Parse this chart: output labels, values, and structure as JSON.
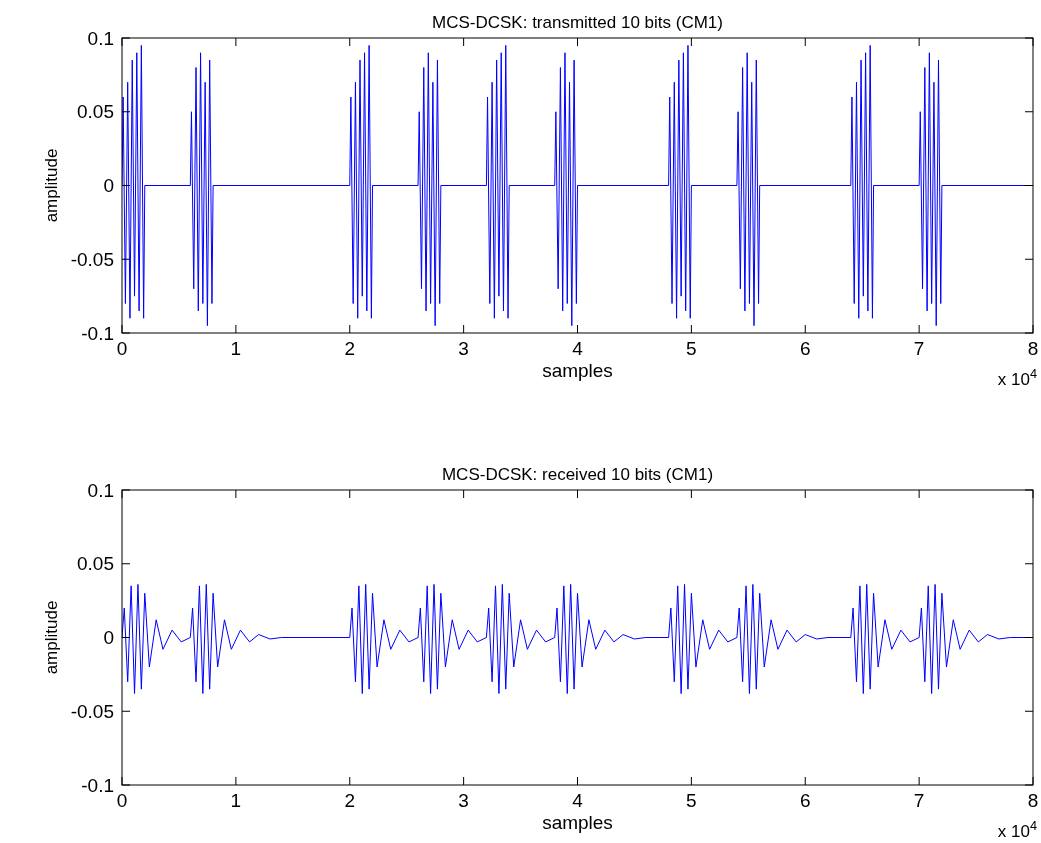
{
  "chart_data": [
    {
      "type": "line",
      "title": "MCS-DCSK: transmitted 10 bits (CM1)",
      "xlabel": "samples",
      "ylabel": "amplitude",
      "xlim": [
        0,
        8
      ],
      "ylim": [
        -0.1,
        0.1
      ],
      "xticks": [
        0,
        1,
        2,
        3,
        4,
        5,
        6,
        7,
        8
      ],
      "yticks": [
        -0.1,
        -0.05,
        0,
        0.05,
        0.1
      ],
      "grid": false,
      "annotations": [
        "x 10$^{4}$"
      ],
      "series": [
        {
          "color": "#0000ff",
          "line_style": "solid",
          "x": [
            0,
            0.01,
            0.03,
            0.05,
            0.07,
            0.09,
            0.11,
            0.13,
            0.15,
            0.17,
            0.19,
            0.2,
            0.6,
            0.61,
            0.63,
            0.65,
            0.67,
            0.69,
            0.71,
            0.73,
            0.75,
            0.77,
            0.79,
            0.8,
            2,
            2.01,
            2.03,
            2.05,
            2.07,
            2.09,
            2.11,
            2.13,
            2.15,
            2.17,
            2.19,
            2.2,
            2.6,
            2.61,
            2.63,
            2.65,
            2.67,
            2.69,
            2.71,
            2.73,
            2.75,
            2.77,
            2.79,
            2.8,
            3.2,
            3.21,
            3.23,
            3.25,
            3.27,
            3.29,
            3.31,
            3.33,
            3.35,
            3.37,
            3.39,
            3.4,
            3.8,
            3.81,
            3.83,
            3.85,
            3.87,
            3.89,
            3.91,
            3.93,
            3.95,
            3.97,
            3.99,
            4,
            4.8,
            4.81,
            4.83,
            4.85,
            4.87,
            4.89,
            4.91,
            4.93,
            4.95,
            4.97,
            4.99,
            5,
            5.4,
            5.41,
            5.43,
            5.45,
            5.47,
            5.49,
            5.51,
            5.53,
            5.55,
            5.57,
            5.59,
            5.6,
            6.4,
            6.41,
            6.43,
            6.45,
            6.47,
            6.49,
            6.51,
            6.53,
            6.55,
            6.57,
            6.59,
            6.6,
            7,
            7.01,
            7.03,
            7.05,
            7.07,
            7.09,
            7.11,
            7.13,
            7.15,
            7.17,
            7.19,
            7.2,
            8
          ],
          "values": [
            0,
            0.06,
            -0.08,
            0.07,
            -0.09,
            0.085,
            -0.075,
            0.09,
            -0.085,
            0.095,
            -0.09,
            0,
            0,
            0.05,
            -0.07,
            0.08,
            -0.085,
            0.09,
            -0.08,
            0.07,
            -0.095,
            0.085,
            -0.08,
            0,
            0,
            0.06,
            -0.08,
            0.07,
            -0.09,
            0.085,
            -0.075,
            0.09,
            -0.085,
            0.095,
            -0.09,
            0,
            0,
            0.05,
            -0.07,
            0.08,
            -0.085,
            0.09,
            -0.08,
            0.07,
            -0.095,
            0.085,
            -0.08,
            0,
            0,
            0.06,
            -0.08,
            0.07,
            -0.09,
            0.085,
            -0.075,
            0.09,
            -0.085,
            0.095,
            -0.09,
            0,
            0,
            0.05,
            -0.07,
            0.08,
            -0.085,
            0.09,
            -0.08,
            0.07,
            -0.095,
            0.085,
            -0.08,
            0,
            0,
            0.06,
            -0.08,
            0.07,
            -0.09,
            0.085,
            -0.075,
            0.09,
            -0.085,
            0.095,
            -0.09,
            0,
            0,
            0.05,
            -0.07,
            0.08,
            -0.085,
            0.09,
            -0.08,
            0.07,
            -0.095,
            0.085,
            -0.08,
            0,
            0,
            0.06,
            -0.08,
            0.07,
            -0.09,
            0.085,
            -0.075,
            0.09,
            -0.085,
            0.095,
            -0.09,
            0,
            0,
            0.05,
            -0.07,
            0.08,
            -0.085,
            0.09,
            -0.08,
            0.07,
            -0.095,
            0.085,
            -0.08,
            0,
            0
          ]
        }
      ]
    },
    {
      "type": "line",
      "title": "MCS-DCSK: received 10 bits (CM1)",
      "xlabel": "samples",
      "ylabel": "amplitude",
      "xlim": [
        0,
        8
      ],
      "ylim": [
        -0.1,
        0.1
      ],
      "xticks": [
        0,
        1,
        2,
        3,
        4,
        5,
        6,
        7,
        8
      ],
      "yticks": [
        -0.1,
        -0.05,
        0,
        0.05,
        0.1
      ],
      "grid": false,
      "annotations": [
        "x 10$^{4}$"
      ],
      "series": [
        {
          "color": "#0000ff",
          "line_style": "solid",
          "x": [
            0,
            0.02,
            0.05,
            0.08,
            0.11,
            0.14,
            0.17,
            0.2,
            0.24,
            0.3,
            0.36,
            0.44,
            0.52,
            0.6,
            0.62,
            0.65,
            0.68,
            0.71,
            0.74,
            0.77,
            0.8,
            0.84,
            0.9,
            0.96,
            1.04,
            1.12,
            1.2,
            1.3,
            1.4,
            2,
            2.02,
            2.05,
            2.08,
            2.11,
            2.14,
            2.17,
            2.2,
            2.24,
            2.3,
            2.36,
            2.44,
            2.52,
            2.6,
            2.62,
            2.65,
            2.68,
            2.71,
            2.74,
            2.77,
            2.8,
            2.84,
            2.9,
            2.96,
            3.04,
            3.12,
            3.2,
            3.22,
            3.25,
            3.28,
            3.31,
            3.34,
            3.37,
            3.4,
            3.44,
            3.5,
            3.56,
            3.64,
            3.72,
            3.8,
            3.82,
            3.85,
            3.88,
            3.91,
            3.94,
            3.97,
            4,
            4.04,
            4.1,
            4.16,
            4.24,
            4.32,
            4.4,
            4.5,
            4.6,
            4.8,
            4.82,
            4.85,
            4.88,
            4.91,
            4.94,
            4.97,
            5,
            5.04,
            5.1,
            5.16,
            5.24,
            5.32,
            5.4,
            5.42,
            5.45,
            5.48,
            5.51,
            5.54,
            5.57,
            5.6,
            5.64,
            5.7,
            5.76,
            5.84,
            5.92,
            6,
            6.1,
            6.2,
            6.4,
            6.42,
            6.45,
            6.48,
            6.51,
            6.54,
            6.57,
            6.6,
            6.64,
            6.7,
            6.76,
            6.84,
            6.92,
            7,
            7.02,
            7.05,
            7.08,
            7.11,
            7.14,
            7.17,
            7.2,
            7.24,
            7.3,
            7.36,
            7.44,
            7.52,
            7.6,
            7.7,
            7.8,
            8
          ],
          "values": [
            0,
            0.02,
            -0.03,
            0.035,
            -0.038,
            0.036,
            -0.035,
            0.03,
            -0.02,
            0.012,
            -0.008,
            0.005,
            -0.003,
            0,
            0.02,
            -0.03,
            0.035,
            -0.038,
            0.036,
            -0.035,
            0.03,
            -0.02,
            0.012,
            -0.008,
            0.005,
            -0.003,
            0.002,
            -0.001,
            0,
            0,
            0.02,
            -0.03,
            0.035,
            -0.038,
            0.036,
            -0.035,
            0.03,
            -0.02,
            0.012,
            -0.008,
            0.005,
            -0.003,
            0,
            0.02,
            -0.03,
            0.035,
            -0.038,
            0.036,
            -0.035,
            0.03,
            -0.02,
            0.012,
            -0.008,
            0.005,
            -0.003,
            0,
            0.02,
            -0.03,
            0.035,
            -0.038,
            0.036,
            -0.035,
            0.03,
            -0.02,
            0.012,
            -0.008,
            0.005,
            -0.003,
            0,
            0.02,
            -0.03,
            0.035,
            -0.038,
            0.036,
            -0.035,
            0.03,
            -0.02,
            0.012,
            -0.008,
            0.005,
            -0.003,
            0.002,
            -0.001,
            0,
            0,
            0.02,
            -0.03,
            0.035,
            -0.038,
            0.036,
            -0.035,
            0.03,
            -0.02,
            0.012,
            -0.008,
            0.005,
            -0.003,
            0,
            0.02,
            -0.03,
            0.035,
            -0.038,
            0.036,
            -0.035,
            0.03,
            -0.02,
            0.012,
            -0.008,
            0.005,
            -0.003,
            0.002,
            -0.001,
            0,
            0,
            0.02,
            -0.03,
            0.035,
            -0.038,
            0.036,
            -0.035,
            0.03,
            -0.02,
            0.012,
            -0.008,
            0.005,
            -0.003,
            0,
            0.02,
            -0.03,
            0.035,
            -0.038,
            0.036,
            -0.035,
            0.03,
            -0.02,
            0.012,
            -0.008,
            0.005,
            -0.003,
            0.002,
            -0.001,
            0,
            0
          ]
        }
      ]
    }
  ]
}
